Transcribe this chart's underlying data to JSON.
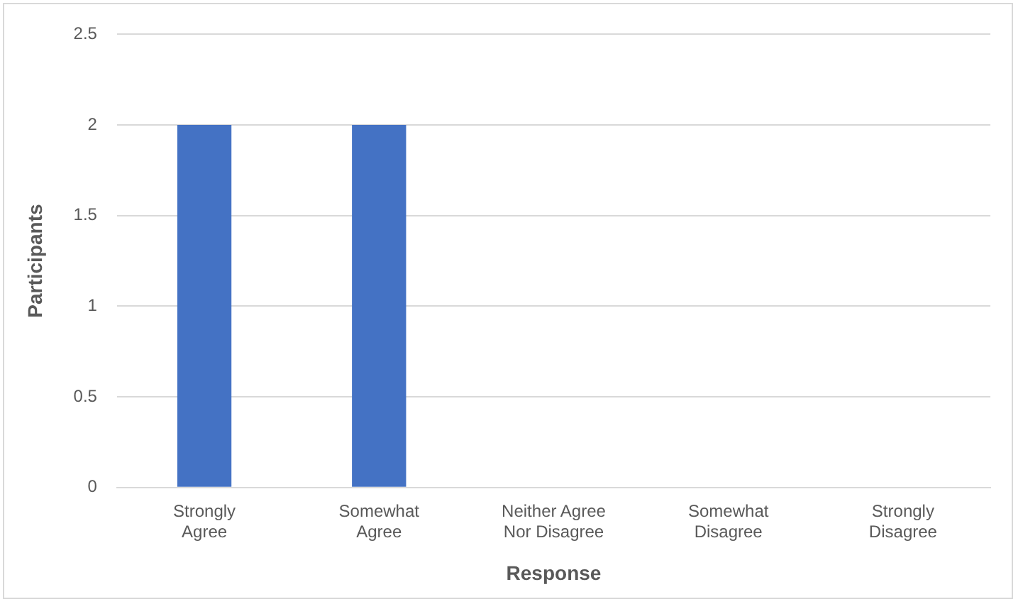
{
  "chart_data": {
    "type": "bar",
    "categories": [
      "Strongly Agree",
      "Somewhat Agree",
      "Neither Agree Nor Disagree",
      "Somewhat Disagree",
      "Strongly Disagree"
    ],
    "values": [
      2,
      2,
      0,
      0,
      0
    ],
    "color": "#4472c4",
    "xlabel": "Response",
    "ylabel": "Participants",
    "ylim": [
      0,
      2.5
    ],
    "yticks": [
      0,
      0.5,
      1,
      1.5,
      2,
      2.5
    ],
    "grid": "y"
  }
}
